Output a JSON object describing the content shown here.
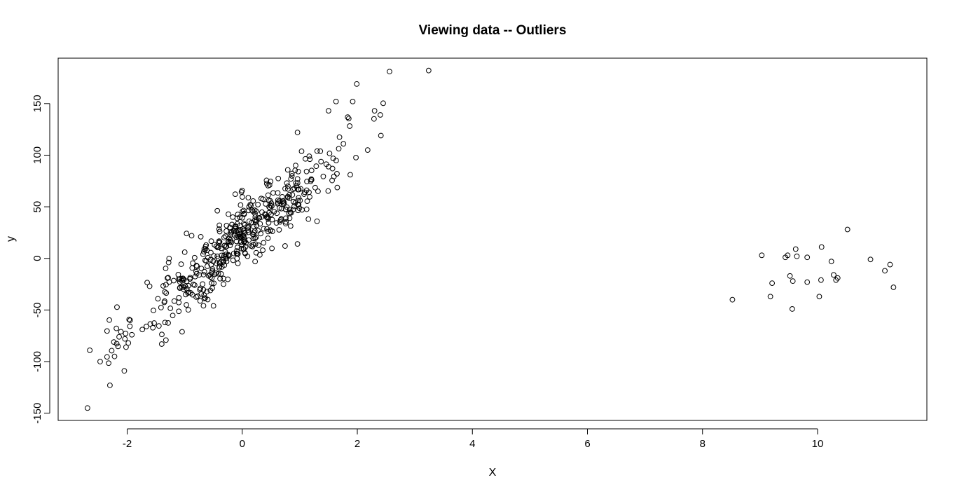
{
  "chart_data": {
    "type": "scatter",
    "title": "Viewing data -- Outliers",
    "xlabel": "X",
    "ylabel": "y",
    "xlim": [
      -3.2,
      11.9
    ],
    "ylim": [
      -157,
      194
    ],
    "xticks": [
      -2,
      0,
      2,
      4,
      6,
      8,
      10
    ],
    "yticks": [
      -150,
      -100,
      -50,
      0,
      50,
      100,
      150
    ],
    "xtick_labels": [
      "-2",
      "0",
      "2",
      "4",
      "6",
      "8",
      "10"
    ],
    "ytick_labels": [
      "-150",
      "-100",
      "-50",
      "0",
      "50",
      "100",
      "150"
    ],
    "grid": false,
    "marker": "open-circle",
    "main_cluster": {
      "n_points": 500,
      "slope": 47,
      "intercept": 22,
      "x_min": -2.7,
      "x_max": 3.25,
      "points": [
        [
          -2.69,
          -145
        ],
        [
          -2.65,
          -89
        ],
        [
          -2.47,
          -100
        ],
        [
          -2.3,
          -123
        ],
        [
          -2.22,
          -95
        ],
        [
          -2.14,
          -76
        ],
        [
          -2.05,
          -109
        ],
        [
          -2.04,
          -78
        ],
        [
          -2.02,
          -86
        ],
        [
          -1.98,
          -82
        ],
        [
          2.56,
          181
        ],
        [
          3.24,
          182
        ],
        [
          1.99,
          169
        ],
        [
          2.3,
          143
        ],
        [
          2.4,
          139
        ],
        [
          1.63,
          152
        ],
        [
          1.92,
          152
        ],
        [
          2.41,
          119
        ],
        [
          1.5,
          143
        ],
        [
          2.18,
          105
        ],
        [
          0.96,
          122
        ],
        [
          0.96,
          14
        ],
        [
          1.15,
          38
        ],
        [
          1.3,
          36
        ],
        [
          -1.61,
          -27
        ],
        [
          -1.28,
          -4
        ],
        [
          -1.0,
          6
        ],
        [
          -0.88,
          22
        ],
        [
          -1.4,
          -83
        ],
        [
          -0.5,
          -46
        ]
      ]
    },
    "outlier_cluster": {
      "points": [
        [
          8.52,
          -40
        ],
        [
          9.03,
          3
        ],
        [
          9.18,
          -37
        ],
        [
          9.21,
          -24
        ],
        [
          9.44,
          1
        ],
        [
          9.48,
          3
        ],
        [
          9.52,
          -17
        ],
        [
          9.57,
          -22
        ],
        [
          9.56,
          -49
        ],
        [
          9.62,
          9
        ],
        [
          9.64,
          2
        ],
        [
          9.82,
          -23
        ],
        [
          9.82,
          1
        ],
        [
          10.03,
          -37
        ],
        [
          10.06,
          -21
        ],
        [
          10.07,
          11
        ],
        [
          10.24,
          -3
        ],
        [
          10.28,
          -16
        ],
        [
          10.32,
          -21
        ],
        [
          10.35,
          -19
        ],
        [
          10.52,
          28
        ],
        [
          10.92,
          -1
        ],
        [
          11.17,
          -12
        ],
        [
          11.26,
          -6
        ],
        [
          11.32,
          -28
        ]
      ]
    }
  }
}
